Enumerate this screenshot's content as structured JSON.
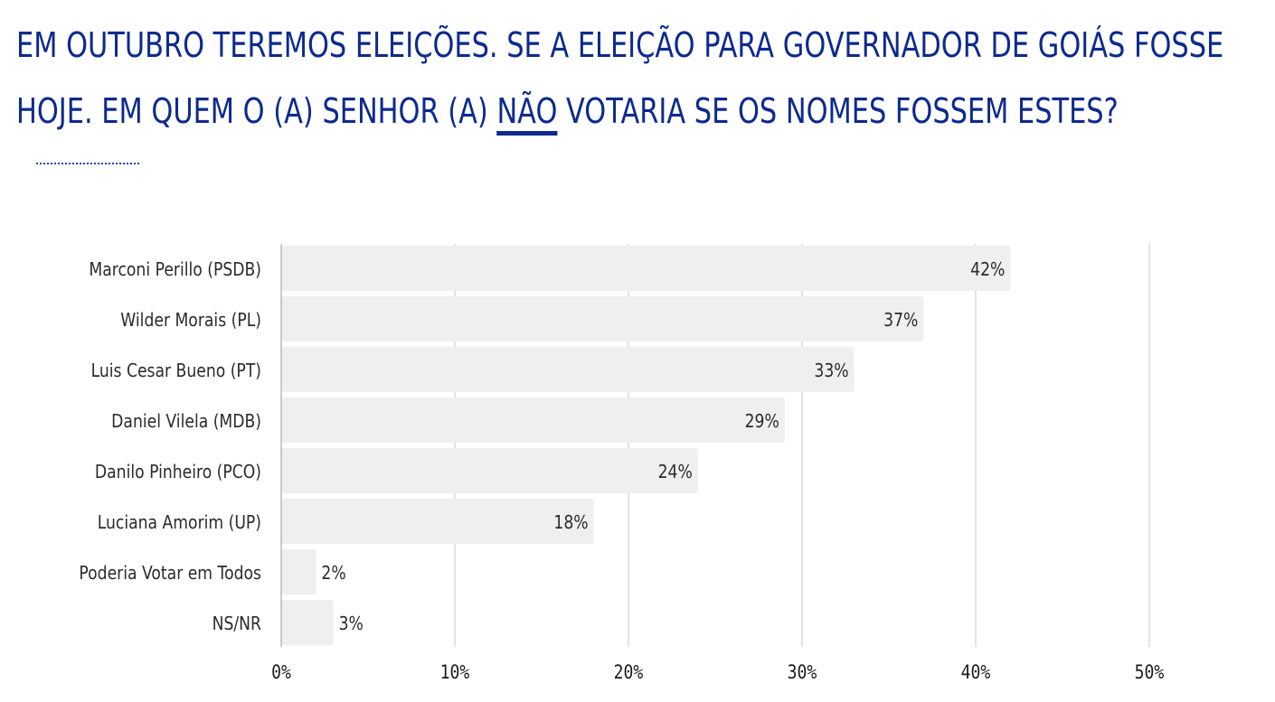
{
  "title": {
    "prefix": "EM OUTUBRO TEREMOS ELEIÇÕES. SE A ELEIÇÃO PARA GOVERNADOR DE GOIÁS FOSSE HOJE. EM QUEM O (A) SENHOR (A) ",
    "line1": "EM OUTUBRO TEREMOS ELEIÇÕES. SE A ELEIÇÃO PARA GOVERNADOR DE GOIÁS FOSSE",
    "line2_before": "HOJE. EM QUEM O (A) SENHOR (A) ",
    "emphasis": "NÃO",
    "line2_after": " VOTARIA SE OS NOMES FOSSEM ESTES?"
  },
  "colors": {
    "title": "#0d2a8e",
    "bar": "#edeff0",
    "grid": "#c9c9c9",
    "label": "#2b2b2b"
  },
  "chart_data": {
    "type": "bar",
    "orientation": "horizontal",
    "categories": [
      "Marconi Perillo (PSDB)",
      "Wilder Morais (PL)",
      "Luis Cesar Bueno (PT)",
      "Daniel Vilela (MDB)",
      "Danilo Pinheiro (PCO)",
      "Luciana Amorim (UP)",
      "Poderia Votar em Todos",
      "NS/NR"
    ],
    "values": [
      42,
      37,
      33,
      29,
      24,
      18,
      2,
      3
    ],
    "data_labels": [
      "42%",
      "37%",
      "33%",
      "29%",
      "24%",
      "18%",
      "2%",
      "3%"
    ],
    "x_ticks": [
      0,
      10,
      20,
      30,
      40,
      50
    ],
    "x_tick_labels": [
      "0%",
      "10%",
      "20%",
      "30%",
      "40%",
      "50%"
    ],
    "xlim": [
      0,
      50
    ],
    "grid": true,
    "legend": "none"
  }
}
